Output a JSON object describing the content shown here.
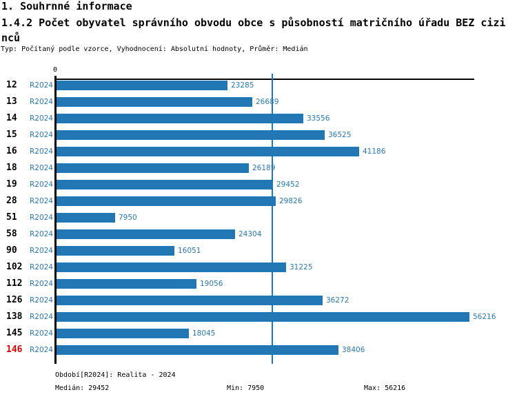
{
  "header": {
    "section_title": "1. Souhrnné informace",
    "indicator_title": "1.4.2 Počet obyvatel správního obvodu obce s působností matričního úřadu BEZ cizinců",
    "meta_line": "Typ: Počítaný podle vzorce, Vyhodnocení: Absolutní hodnoty, Průměr: Medián"
  },
  "chart_data": {
    "type": "bar",
    "orientation": "horizontal",
    "title": "1.4.2 Počet obyvatel správního obvodu obce s působností matričního úřadu BEZ cizinců",
    "x_axis_zero_label": "0",
    "xlim": [
      0,
      56216
    ],
    "grid": false,
    "legend_position": "none",
    "value_labels": true,
    "categories": [
      "12",
      "13",
      "14",
      "15",
      "16",
      "18",
      "19",
      "28",
      "51",
      "58",
      "90",
      "102",
      "112",
      "126",
      "138",
      "145",
      "146"
    ],
    "series": [
      {
        "name": "R2024",
        "values": [
          23285,
          26689,
          33556,
          36525,
          41186,
          26189,
          29452,
          29826,
          7950,
          24304,
          16051,
          31225,
          19056,
          36272,
          56216,
          18045,
          38406
        ]
      }
    ],
    "highlight_category": "146",
    "median": 29452,
    "min": 7950,
    "max": 56216
  },
  "footer": {
    "period_line": "Období[R2024]: Realita - 2024",
    "median_label": "Medián: 29452",
    "min_label": "Min: 7950",
    "max_label": "Max: 56216"
  },
  "colors": {
    "bar": "#2077b4",
    "label_text": "#2878b8",
    "median_line": "#2077b4",
    "axis": "#000000",
    "row_number": "#000000",
    "highlight_row_number": "#dd0000"
  }
}
